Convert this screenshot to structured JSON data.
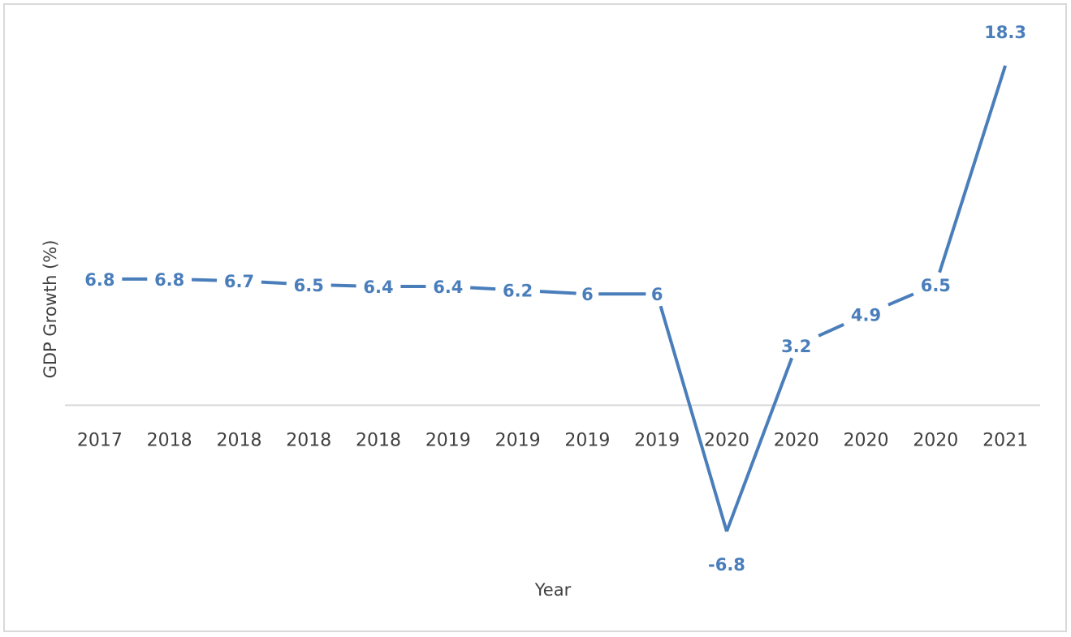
{
  "chart_data": {
    "type": "line",
    "title": "",
    "xlabel": "Year",
    "ylabel": "GDP Growth (%)",
    "categories": [
      "2017",
      "2018",
      "2018",
      "2018",
      "2018",
      "2019",
      "2019",
      "2019",
      "2019",
      "2020",
      "2020",
      "2020",
      "2020",
      "2021"
    ],
    "series": [
      {
        "values": [
          6.8,
          6.8,
          6.7,
          6.5,
          6.4,
          6.4,
          6.2,
          6,
          6,
          -6.8,
          3.2,
          4.9,
          6.5,
          18.3
        ],
        "color": "#4a7ebb"
      }
    ],
    "ylim": [
      -10.3,
      20
    ],
    "grid": false,
    "legend": "none",
    "data_labels": true
  }
}
